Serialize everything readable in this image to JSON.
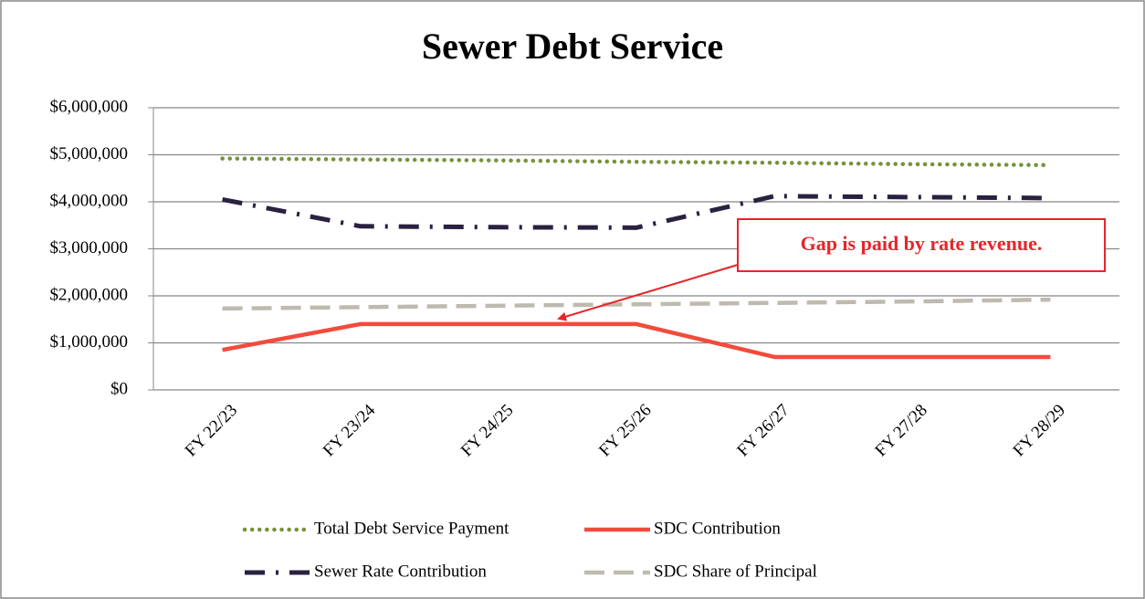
{
  "chart_data": {
    "type": "line",
    "title": "Sewer Debt Service",
    "categories": [
      "FY 22/23",
      "FY 23/24",
      "FY 24/25",
      "FY 25/26",
      "FY 26/27",
      "FY 27/28",
      "FY 28/29"
    ],
    "series": [
      {
        "name": "Total Debt Service Payment",
        "color": "#76923c",
        "values": [
          4920000,
          4900000,
          4880000,
          4850000,
          4830000,
          4800000,
          4780000
        ]
      },
      {
        "name": "SDC Contribution",
        "color": "#f24b3c",
        "values": [
          850000,
          1400000,
          1400000,
          1400000,
          700000,
          700000,
          700000
        ]
      },
      {
        "name": "Sewer Rate Contribution",
        "color": "#2a2140",
        "values": [
          4050000,
          3480000,
          3460000,
          3450000,
          4120000,
          4100000,
          4080000
        ]
      },
      {
        "name": "SDC Share of Principal",
        "color": "#bfbab0",
        "values": [
          1730000,
          1760000,
          1790000,
          1820000,
          1850000,
          1880000,
          1920000
        ]
      }
    ],
    "ylim": [
      0,
      6000000
    ],
    "yticks": [
      {
        "value": 0,
        "label": "$0"
      },
      {
        "value": 1000000,
        "label": "$1,000,000"
      },
      {
        "value": 2000000,
        "label": "$2,000,000"
      },
      {
        "value": 3000000,
        "label": "$3,000,000"
      },
      {
        "value": 4000000,
        "label": "$4,000,000"
      },
      {
        "value": 5000000,
        "label": "$5,000,000"
      },
      {
        "value": 6000000,
        "label": "$6,000,000"
      }
    ],
    "grid": true,
    "legend": "bottom",
    "annotation": "Gap is paid by rate revenue."
  }
}
